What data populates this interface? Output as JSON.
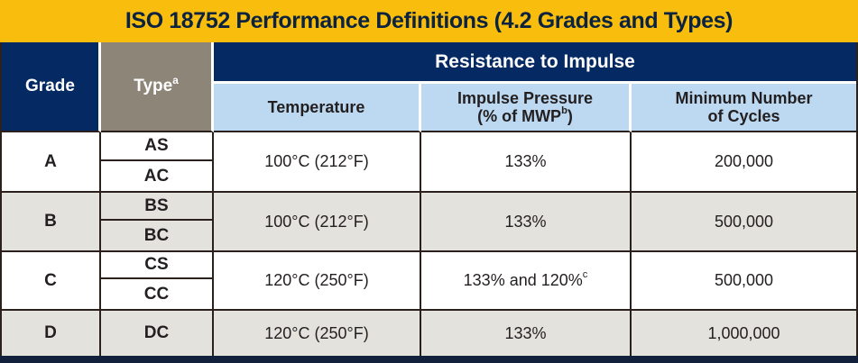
{
  "title": "ISO 18752 Performance Definitions (4.2 Grades and Types)",
  "colors": {
    "gold": "#F9BE0D",
    "navy": "#042963",
    "taupe": "#8D8678",
    "light_blue": "#BCD9F1",
    "row_gray": "#E3E2DD",
    "row_white": "#FFFFFF",
    "border_dark": "#2A211C",
    "text_dark": "#231F20"
  },
  "header": {
    "grade_label": "Grade",
    "type_label": "Type",
    "type_sup": "a",
    "resistance_label": "Resistance to Impulse",
    "temperature_label": "Temperature",
    "impulse_line1": "Impulse Pressure",
    "impulse_line2_pre": "(% of MWP",
    "impulse_sup": "b",
    "impulse_line2_post": ")",
    "cycles_line1": "Minimum Number",
    "cycles_line2": "of Cycles"
  },
  "rows": [
    {
      "grade": "A",
      "types": [
        "AS",
        "AC"
      ],
      "temperature": "100°C (212°F)",
      "impulse": "133%",
      "impulse_sup": "",
      "cycles": "200,000"
    },
    {
      "grade": "B",
      "types": [
        "BS",
        "BC"
      ],
      "temperature": "100°C (212°F)",
      "impulse": "133%",
      "impulse_sup": "",
      "cycles": "500,000"
    },
    {
      "grade": "C",
      "types": [
        "CS",
        "CC"
      ],
      "temperature": "120°C (250°F)",
      "impulse": "133% and 120%",
      "impulse_sup": "c",
      "cycles": "500,000"
    },
    {
      "grade": "D",
      "types": [
        "DC"
      ],
      "temperature": "120°C (250°F)",
      "impulse": "133%",
      "impulse_sup": "",
      "cycles": "1,000,000"
    }
  ]
}
